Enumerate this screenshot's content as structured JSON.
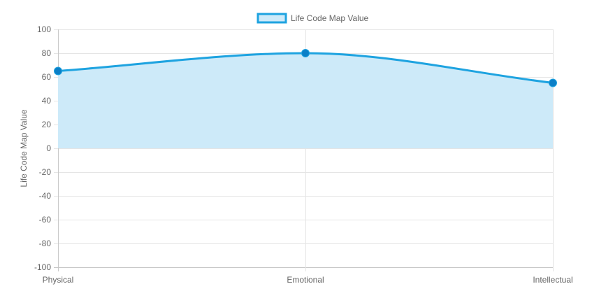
{
  "chart_data": {
    "type": "area",
    "categories": [
      "Physical",
      "Emotional",
      "Intellectual"
    ],
    "series": [
      {
        "name": "Life Code Map Value",
        "values": [
          65,
          80,
          55
        ]
      }
    ],
    "xlabel": "",
    "ylabel": "Life Code Map Value",
    "ylim": [
      -100,
      100
    ],
    "yticks": [
      100,
      80,
      60,
      40,
      20,
      0,
      -20,
      -40,
      -60,
      -80,
      -100
    ],
    "grid": true,
    "legend_position": "top-center",
    "colors": {
      "line": "#1ea3e0",
      "point": "#0b7fc7",
      "fill": "#cdeaf9",
      "grid": "#e5e5e5",
      "axis": "#c8c8c8",
      "text": "#666666"
    }
  }
}
